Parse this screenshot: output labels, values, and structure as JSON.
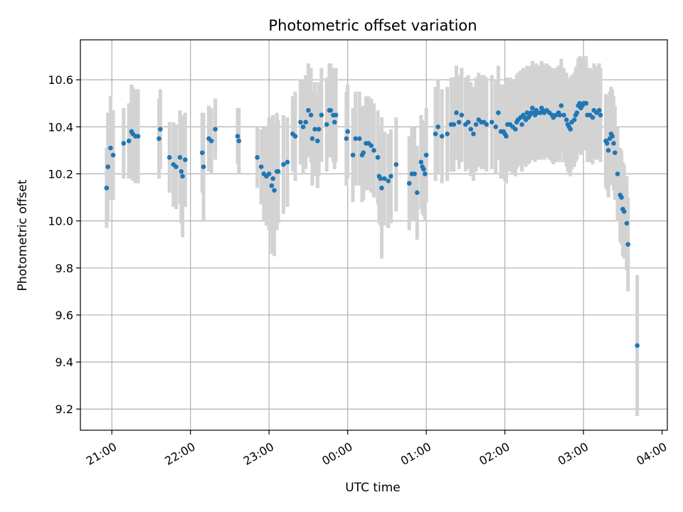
{
  "chart_data": {
    "type": "scatter",
    "title": "Photometric offset variation",
    "xlabel": "UTC time",
    "ylabel": "Photometric offset",
    "x_ticks": [
      "21:00",
      "22:00",
      "23:00",
      "00:00",
      "01:00",
      "02:00",
      "03:00",
      "04:00"
    ],
    "x_tick_minutes": [
      0,
      60,
      120,
      180,
      240,
      300,
      360,
      420
    ],
    "xlim_minutes": [
      -24,
      424
    ],
    "y_ticks": [
      "9.2",
      "9.4",
      "9.6",
      "9.8",
      "10.0",
      "10.2",
      "10.4",
      "10.6"
    ],
    "ylim": [
      9.11,
      10.77
    ],
    "grid": true,
    "point_color": "#1f77b4",
    "errorbar_color": "#d3d3d3",
    "points": [
      {
        "t": "20:56",
        "y": 10.14,
        "e": 0.17
      },
      {
        "t": "20:57",
        "y": 10.23,
        "e": 0.23
      },
      {
        "t": "20:59",
        "y": 10.31,
        "e": 0.22
      },
      {
        "t": "21:01",
        "y": 10.28,
        "e": 0.19
      },
      {
        "t": "21:09",
        "y": 10.33,
        "e": 0.15
      },
      {
        "t": "21:13",
        "y": 10.34,
        "e": 0.16
      },
      {
        "t": "21:15",
        "y": 10.38,
        "e": 0.2
      },
      {
        "t": "21:16",
        "y": 10.37,
        "e": 0.2
      },
      {
        "t": "21:18",
        "y": 10.36,
        "e": 0.2
      },
      {
        "t": "21:20",
        "y": 10.36,
        "e": 0.2
      },
      {
        "t": "21:36",
        "y": 10.35,
        "e": 0.17
      },
      {
        "t": "21:37",
        "y": 10.39,
        "e": 0.17
      },
      {
        "t": "21:44",
        "y": 10.27,
        "e": 0.15
      },
      {
        "t": "21:47",
        "y": 10.24,
        "e": 0.18
      },
      {
        "t": "21:49",
        "y": 10.23,
        "e": 0.18
      },
      {
        "t": "21:52",
        "y": 10.27,
        "e": 0.2
      },
      {
        "t": "21:53",
        "y": 10.21,
        "e": 0.22
      },
      {
        "t": "21:54",
        "y": 10.19,
        "e": 0.26
      },
      {
        "t": "21:56",
        "y": 10.26,
        "e": 0.2
      },
      {
        "t": "22:09",
        "y": 10.29,
        "e": 0.17
      },
      {
        "t": "22:10",
        "y": 10.23,
        "e": 0.23
      },
      {
        "t": "22:14",
        "y": 10.35,
        "e": 0.14
      },
      {
        "t": "22:16",
        "y": 10.34,
        "e": 0.14
      },
      {
        "t": "22:19",
        "y": 10.39,
        "e": 0.13
      },
      {
        "t": "22:36",
        "y": 10.36,
        "e": 0.12
      },
      {
        "t": "22:37",
        "y": 10.34,
        "e": 0.14
      },
      {
        "t": "22:51",
        "y": 10.27,
        "e": 0.13
      },
      {
        "t": "22:54",
        "y": 10.23,
        "e": 0.16
      },
      {
        "t": "22:56",
        "y": 10.2,
        "e": 0.2
      },
      {
        "t": "22:58",
        "y": 10.19,
        "e": 0.21
      },
      {
        "t": "23:00",
        "y": 10.2,
        "e": 0.24
      },
      {
        "t": "23:02",
        "y": 10.15,
        "e": 0.29
      },
      {
        "t": "23:03",
        "y": 10.18,
        "e": 0.27
      },
      {
        "t": "23:04",
        "y": 10.13,
        "e": 0.28
      },
      {
        "t": "23:06",
        "y": 10.21,
        "e": 0.25
      },
      {
        "t": "23:07",
        "y": 10.21,
        "e": 0.22
      },
      {
        "t": "23:11",
        "y": 10.24,
        "e": 0.21
      },
      {
        "t": "23:14",
        "y": 10.25,
        "e": 0.19
      },
      {
        "t": "23:18",
        "y": 10.37,
        "e": 0.16
      },
      {
        "t": "23:20",
        "y": 10.36,
        "e": 0.19
      },
      {
        "t": "23:24",
        "y": 10.42,
        "e": 0.18
      },
      {
        "t": "23:26",
        "y": 10.4,
        "e": 0.2
      },
      {
        "t": "23:28",
        "y": 10.42,
        "e": 0.2
      },
      {
        "t": "23:30",
        "y": 10.47,
        "e": 0.2
      },
      {
        "t": "23:32",
        "y": 10.45,
        "e": 0.2
      },
      {
        "t": "23:33",
        "y": 10.35,
        "e": 0.2
      },
      {
        "t": "23:35",
        "y": 10.39,
        "e": 0.2
      },
      {
        "t": "23:37",
        "y": 10.34,
        "e": 0.2
      },
      {
        "t": "23:38",
        "y": 10.39,
        "e": 0.2
      },
      {
        "t": "23:40",
        "y": 10.45,
        "e": 0.2
      },
      {
        "t": "23:44",
        "y": 10.41,
        "e": 0.2
      },
      {
        "t": "23:46",
        "y": 10.47,
        "e": 0.2
      },
      {
        "t": "23:47",
        "y": 10.47,
        "e": 0.2
      },
      {
        "t": "23:49",
        "y": 10.45,
        "e": 0.2
      },
      {
        "t": "23:50",
        "y": 10.42,
        "e": 0.2
      },
      {
        "t": "23:51",
        "y": 10.45,
        "e": 0.2
      },
      {
        "t": "23:59",
        "y": 10.35,
        "e": 0.2
      },
      {
        "t": "00:00",
        "y": 10.38,
        "e": 0.2
      },
      {
        "t": "00:04",
        "y": 10.28,
        "e": 0.2
      },
      {
        "t": "00:06",
        "y": 10.35,
        "e": 0.2
      },
      {
        "t": "00:09",
        "y": 10.35,
        "e": 0.2
      },
      {
        "t": "00:11",
        "y": 10.28,
        "e": 0.2
      },
      {
        "t": "00:12",
        "y": 10.29,
        "e": 0.2
      },
      {
        "t": "00:14",
        "y": 10.33,
        "e": 0.2
      },
      {
        "t": "00:16",
        "y": 10.33,
        "e": 0.2
      },
      {
        "t": "00:18",
        "y": 10.32,
        "e": 0.2
      },
      {
        "t": "00:20",
        "y": 10.3,
        "e": 0.2
      },
      {
        "t": "00:23",
        "y": 10.27,
        "e": 0.2
      },
      {
        "t": "00:24",
        "y": 10.19,
        "e": 0.2
      },
      {
        "t": "00:25",
        "y": 10.18,
        "e": 0.2
      },
      {
        "t": "00:26",
        "y": 10.14,
        "e": 0.3
      },
      {
        "t": "00:28",
        "y": 10.18,
        "e": 0.2
      },
      {
        "t": "00:31",
        "y": 10.17,
        "e": 0.2
      },
      {
        "t": "00:33",
        "y": 10.19,
        "e": 0.2
      },
      {
        "t": "00:37",
        "y": 10.24,
        "e": 0.2
      },
      {
        "t": "00:47",
        "y": 10.16,
        "e": 0.2
      },
      {
        "t": "00:49",
        "y": 10.2,
        "e": 0.2
      },
      {
        "t": "00:51",
        "y": 10.2,
        "e": 0.2
      },
      {
        "t": "00:53",
        "y": 10.12,
        "e": 0.2
      },
      {
        "t": "00:56",
        "y": 10.25,
        "e": 0.2
      },
      {
        "t": "00:57",
        "y": 10.23,
        "e": 0.2
      },
      {
        "t": "00:58",
        "y": 10.22,
        "e": 0.2
      },
      {
        "t": "00:59",
        "y": 10.2,
        "e": 0.2
      },
      {
        "t": "01:00",
        "y": 10.28,
        "e": 0.2
      },
      {
        "t": "01:07",
        "y": 10.37,
        "e": 0.2
      },
      {
        "t": "01:09",
        "y": 10.4,
        "e": 0.2
      },
      {
        "t": "01:12",
        "y": 10.36,
        "e": 0.2
      },
      {
        "t": "01:16",
        "y": 10.37,
        "e": 0.2
      },
      {
        "t": "01:19",
        "y": 10.41,
        "e": 0.2
      },
      {
        "t": "01:21",
        "y": 10.41,
        "e": 0.2
      },
      {
        "t": "01:23",
        "y": 10.46,
        "e": 0.2
      },
      {
        "t": "01:25",
        "y": 10.42,
        "e": 0.2
      },
      {
        "t": "01:27",
        "y": 10.45,
        "e": 0.2
      },
      {
        "t": "01:30",
        "y": 10.41,
        "e": 0.2
      },
      {
        "t": "01:32",
        "y": 10.42,
        "e": 0.2
      },
      {
        "t": "01:34",
        "y": 10.39,
        "e": 0.2
      },
      {
        "t": "01:36",
        "y": 10.37,
        "e": 0.2
      },
      {
        "t": "01:38",
        "y": 10.41,
        "e": 0.2
      },
      {
        "t": "01:40",
        "y": 10.43,
        "e": 0.2
      },
      {
        "t": "01:42",
        "y": 10.42,
        "e": 0.2
      },
      {
        "t": "01:44",
        "y": 10.42,
        "e": 0.2
      },
      {
        "t": "01:46",
        "y": 10.41,
        "e": 0.2
      },
      {
        "t": "01:50",
        "y": 10.42,
        "e": 0.2
      },
      {
        "t": "01:53",
        "y": 10.4,
        "e": 0.2
      },
      {
        "t": "01:55",
        "y": 10.46,
        "e": 0.2
      },
      {
        "t": "01:57",
        "y": 10.38,
        "e": 0.2
      },
      {
        "t": "01:59",
        "y": 10.38,
        "e": 0.2
      },
      {
        "t": "02:00",
        "y": 10.37,
        "e": 0.2
      },
      {
        "t": "02:01",
        "y": 10.36,
        "e": 0.2
      },
      {
        "t": "02:02",
        "y": 10.41,
        "e": 0.2
      },
      {
        "t": "02:04",
        "y": 10.41,
        "e": 0.2
      },
      {
        "t": "02:06",
        "y": 10.4,
        "e": 0.2
      },
      {
        "t": "02:08",
        "y": 10.39,
        "e": 0.2
      },
      {
        "t": "02:09",
        "y": 10.42,
        "e": 0.2
      },
      {
        "t": "02:10",
        "y": 10.43,
        "e": 0.2
      },
      {
        "t": "02:12",
        "y": 10.44,
        "e": 0.2
      },
      {
        "t": "02:13",
        "y": 10.41,
        "e": 0.2
      },
      {
        "t": "02:14",
        "y": 10.45,
        "e": 0.2
      },
      {
        "t": "02:15",
        "y": 10.44,
        "e": 0.2
      },
      {
        "t": "02:16",
        "y": 10.43,
        "e": 0.2
      },
      {
        "t": "02:17",
        "y": 10.46,
        "e": 0.2
      },
      {
        "t": "02:18",
        "y": 10.44,
        "e": 0.2
      },
      {
        "t": "02:19",
        "y": 10.45,
        "e": 0.2
      },
      {
        "t": "02:20",
        "y": 10.46,
        "e": 0.2
      },
      {
        "t": "02:21",
        "y": 10.48,
        "e": 0.2
      },
      {
        "t": "02:22",
        "y": 10.46,
        "e": 0.2
      },
      {
        "t": "02:23",
        "y": 10.45,
        "e": 0.2
      },
      {
        "t": "02:24",
        "y": 10.47,
        "e": 0.2
      },
      {
        "t": "02:25",
        "y": 10.46,
        "e": 0.2
      },
      {
        "t": "02:27",
        "y": 10.46,
        "e": 0.2
      },
      {
        "t": "02:28",
        "y": 10.48,
        "e": 0.2
      },
      {
        "t": "02:29",
        "y": 10.47,
        "e": 0.2
      },
      {
        "t": "02:30",
        "y": 10.46,
        "e": 0.2
      },
      {
        "t": "02:32",
        "y": 10.47,
        "e": 0.2
      },
      {
        "t": "02:34",
        "y": 10.46,
        "e": 0.2
      },
      {
        "t": "02:36",
        "y": 10.45,
        "e": 0.2
      },
      {
        "t": "02:37",
        "y": 10.44,
        "e": 0.2
      },
      {
        "t": "02:39",
        "y": 10.45,
        "e": 0.2
      },
      {
        "t": "02:41",
        "y": 10.46,
        "e": 0.2
      },
      {
        "t": "02:42",
        "y": 10.45,
        "e": 0.2
      },
      {
        "t": "02:43",
        "y": 10.49,
        "e": 0.2
      },
      {
        "t": "02:45",
        "y": 10.45,
        "e": 0.2
      },
      {
        "t": "02:47",
        "y": 10.43,
        "e": 0.2
      },
      {
        "t": "02:48",
        "y": 10.41,
        "e": 0.2
      },
      {
        "t": "02:49",
        "y": 10.4,
        "e": 0.2
      },
      {
        "t": "02:50",
        "y": 10.39,
        "e": 0.2
      },
      {
        "t": "02:51",
        "y": 10.42,
        "e": 0.2
      },
      {
        "t": "02:53",
        "y": 10.43,
        "e": 0.2
      },
      {
        "t": "02:54",
        "y": 10.45,
        "e": 0.2
      },
      {
        "t": "02:55",
        "y": 10.46,
        "e": 0.2
      },
      {
        "t": "02:56",
        "y": 10.49,
        "e": 0.2
      },
      {
        "t": "02:57",
        "y": 10.5,
        "e": 0.2
      },
      {
        "t": "02:58",
        "y": 10.48,
        "e": 0.2
      },
      {
        "t": "02:59",
        "y": 10.49,
        "e": 0.2
      },
      {
        "t": "03:00",
        "y": 10.5,
        "e": 0.2
      },
      {
        "t": "03:01",
        "y": 10.5,
        "e": 0.2
      },
      {
        "t": "03:02",
        "y": 10.5,
        "e": 0.2
      },
      {
        "t": "03:03",
        "y": 10.45,
        "e": 0.2
      },
      {
        "t": "03:05",
        "y": 10.45,
        "e": 0.2
      },
      {
        "t": "03:07",
        "y": 10.44,
        "e": 0.2
      },
      {
        "t": "03:08",
        "y": 10.47,
        "e": 0.2
      },
      {
        "t": "03:10",
        "y": 10.46,
        "e": 0.2
      },
      {
        "t": "03:12",
        "y": 10.47,
        "e": 0.2
      },
      {
        "t": "03:13",
        "y": 10.45,
        "e": 0.2
      },
      {
        "t": "03:17",
        "y": 10.34,
        "e": 0.2
      },
      {
        "t": "03:18",
        "y": 10.33,
        "e": 0.2
      },
      {
        "t": "03:19",
        "y": 10.3,
        "e": 0.2
      },
      {
        "t": "03:20",
        "y": 10.35,
        "e": 0.2
      },
      {
        "t": "03:21",
        "y": 10.37,
        "e": 0.2
      },
      {
        "t": "03:22",
        "y": 10.36,
        "e": 0.2
      },
      {
        "t": "03:23",
        "y": 10.33,
        "e": 0.2
      },
      {
        "t": "03:24",
        "y": 10.29,
        "e": 0.2
      },
      {
        "t": "03:26",
        "y": 10.2,
        "e": 0.2
      },
      {
        "t": "03:28",
        "y": 10.11,
        "e": 0.2
      },
      {
        "t": "03:29",
        "y": 10.1,
        "e": 0.2
      },
      {
        "t": "03:30",
        "y": 10.05,
        "e": 0.2
      },
      {
        "t": "03:31",
        "y": 10.04,
        "e": 0.2
      },
      {
        "t": "03:33",
        "y": 9.99,
        "e": 0.2
      },
      {
        "t": "03:34",
        "y": 9.9,
        "e": 0.2
      },
      {
        "t": "03:41",
        "y": 9.47,
        "e": 0.3
      }
    ]
  }
}
